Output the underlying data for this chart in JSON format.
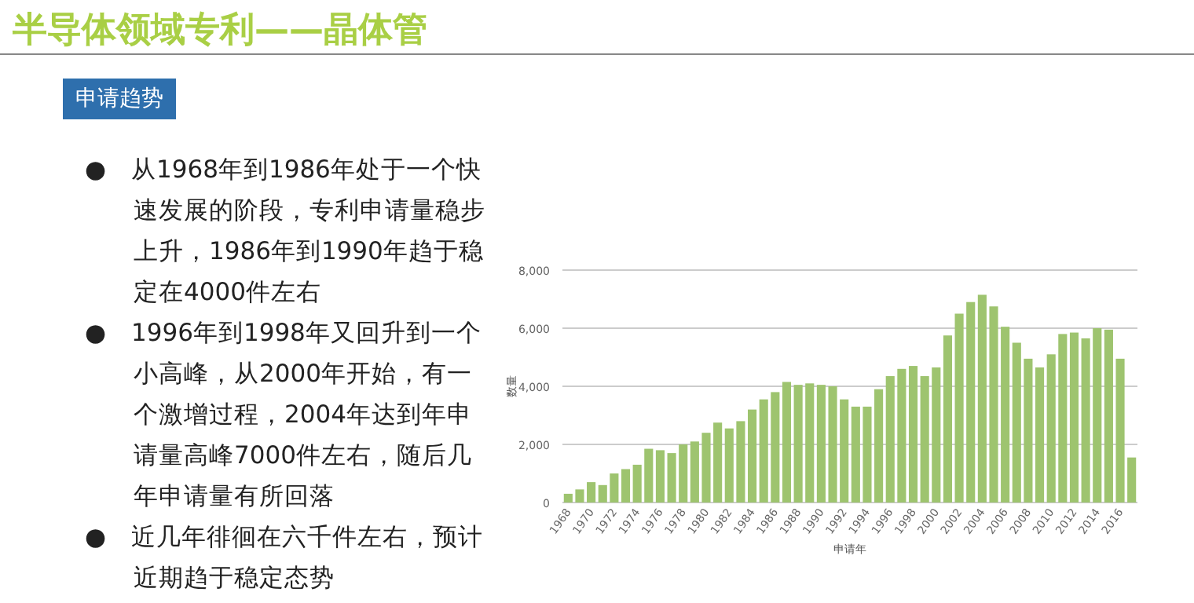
{
  "chart_data": {
    "type": "bar",
    "title": "半导体领域专利——晶体管",
    "subtitle": "申请趋势",
    "annotations": [
      "●　从1968年到1986年处于一个快速发展的阶段，专利申请量稳步上升，1986年到1990年趋于稳定在4000件左右",
      "●　1996年到1998年又回升到一个小高峰，从2000年开始，有一个激增过程，2004年达到年申请量高峰7000件左右，随后几年申请量有所回落",
      "●　近几年徘徊在六千件左右，预计近期趋于稳定态势"
    ],
    "xlabel": "申请年",
    "ylabel": "数量",
    "categories": [
      "1968",
      null,
      "1970",
      null,
      "1972",
      null,
      "1974",
      null,
      "1976",
      null,
      "1978",
      null,
      "1980",
      null,
      "1982",
      null,
      "1984",
      null,
      "1986",
      null,
      "1988",
      null,
      "1990",
      null,
      "1992",
      null,
      "1994",
      null,
      "1996",
      null,
      "1998",
      null,
      "2000",
      null,
      "2002",
      null,
      "2004",
      null,
      "2006",
      null,
      "2008",
      null,
      "2010",
      null,
      "2012",
      null,
      "2014",
      null,
      "2016",
      null
    ],
    "values": [
      300,
      450,
      700,
      600,
      1000,
      1150,
      1300,
      1850,
      1800,
      1700,
      2000,
      2100,
      2400,
      2750,
      2550,
      2800,
      3200,
      3550,
      3800,
      4150,
      4050,
      4100,
      4050,
      4000,
      3550,
      3300,
      3300,
      3900,
      4350,
      4600,
      4700,
      4350,
      4650,
      5750,
      6500,
      6900,
      7150,
      6750,
      6050,
      5500,
      4950,
      4650,
      5100,
      5800,
      5850,
      5650,
      6000,
      5950,
      4950,
      1550
    ],
    "color": "#9ec46f",
    "ylim": [
      0,
      8000
    ],
    "yticks": [
      0,
      {
        "value": 2000,
        "label": "2,000"
      },
      {
        "value": 4000,
        "label": "4,000"
      },
      {
        "value": 6000,
        "label": "6,000"
      },
      {
        "value": 8000,
        "label": "8,000"
      }
    ],
    "grid": "y"
  }
}
